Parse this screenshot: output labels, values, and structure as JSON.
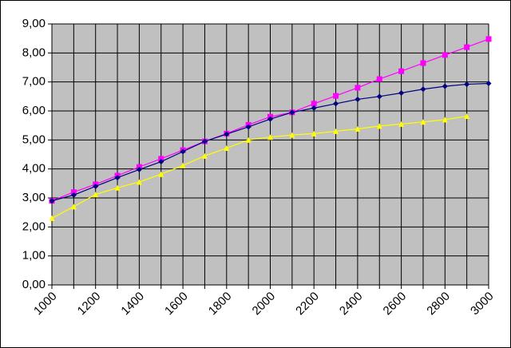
{
  "chart_data": {
    "type": "line",
    "categories": [
      "1000",
      null,
      "1200",
      null,
      "1400",
      null,
      "1600",
      null,
      "1800",
      null,
      "2000",
      null,
      "2200",
      null,
      "2400",
      null,
      "2600",
      null,
      "2800",
      null,
      "3000"
    ],
    "series": [
      {
        "color": "#ff00ff",
        "marker": "square",
        "values": [
          2.9,
          3.2,
          3.47,
          3.77,
          4.07,
          4.35,
          4.65,
          4.95,
          5.22,
          5.52,
          5.8,
          5.95,
          6.25,
          6.52,
          6.8,
          7.1,
          7.37,
          7.65,
          7.93,
          8.2,
          8.48
        ]
      },
      {
        "color": "#000080",
        "marker": "diamond",
        "values": [
          2.9,
          3.1,
          3.4,
          3.7,
          3.98,
          4.25,
          4.6,
          4.95,
          5.2,
          5.45,
          5.72,
          5.95,
          6.1,
          6.25,
          6.4,
          6.5,
          6.62,
          6.75,
          6.85,
          6.92,
          6.95
        ]
      },
      {
        "color": "#ffff00",
        "marker": "triangle",
        "values": [
          2.3,
          2.7,
          3.12,
          3.35,
          3.55,
          3.82,
          4.12,
          4.45,
          4.72,
          5.0,
          5.1,
          5.17,
          5.22,
          5.3,
          5.38,
          5.48,
          5.55,
          5.62,
          5.7,
          5.82,
          null
        ]
      }
    ],
    "ylim": [
      0,
      9
    ],
    "yticks": [
      {
        "value": 0,
        "label": "0,00"
      },
      {
        "value": 1,
        "label": "1,00"
      },
      {
        "value": 2,
        "label": "2,00"
      },
      {
        "value": 3,
        "label": "3,00"
      },
      {
        "value": 4,
        "label": "4,00"
      },
      {
        "value": 5,
        "label": "5,00"
      },
      {
        "value": 6,
        "label": "6,00"
      },
      {
        "value": 7,
        "label": "7,00"
      },
      {
        "value": 8,
        "label": "8,00"
      },
      {
        "value": 9,
        "label": "9,00"
      }
    ],
    "grid": true,
    "plot_background": "#c0c0c0"
  }
}
